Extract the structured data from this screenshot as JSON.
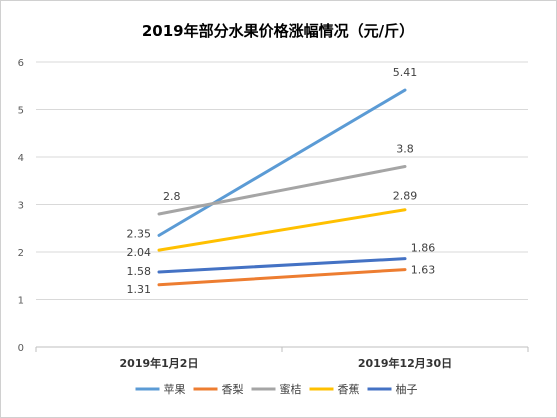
{
  "chart_data": {
    "type": "line",
    "title": "2019年部分水果价格涨幅情况（元/斤）",
    "categories": [
      "2019年1月2日",
      "2019年12月30日"
    ],
    "ylim": [
      0,
      6
    ],
    "yticks": [
      0,
      1,
      2,
      3,
      4,
      5,
      6
    ],
    "grid": true,
    "legend_position": "bottom",
    "series": [
      {
        "name": "苹果",
        "color": "#5B9BD5",
        "values": [
          2.35,
          5.41
        ],
        "labels": [
          "2.35",
          "5.41"
        ]
      },
      {
        "name": "香梨",
        "color": "#ED7D31",
        "values": [
          1.31,
          1.63
        ],
        "labels": [
          "1.31",
          "1.63"
        ]
      },
      {
        "name": "蜜桔",
        "color": "#A5A5A5",
        "values": [
          2.8,
          3.8
        ],
        "labels": [
          "2.8",
          "3.8"
        ]
      },
      {
        "name": "香蕉",
        "color": "#FFC000",
        "values": [
          2.04,
          2.89
        ],
        "labels": [
          "2.04",
          "2.89"
        ]
      },
      {
        "name": "柚子",
        "color": "#4472C4",
        "values": [
          1.58,
          1.86
        ],
        "labels": [
          "1.58",
          "1.86"
        ]
      }
    ]
  }
}
